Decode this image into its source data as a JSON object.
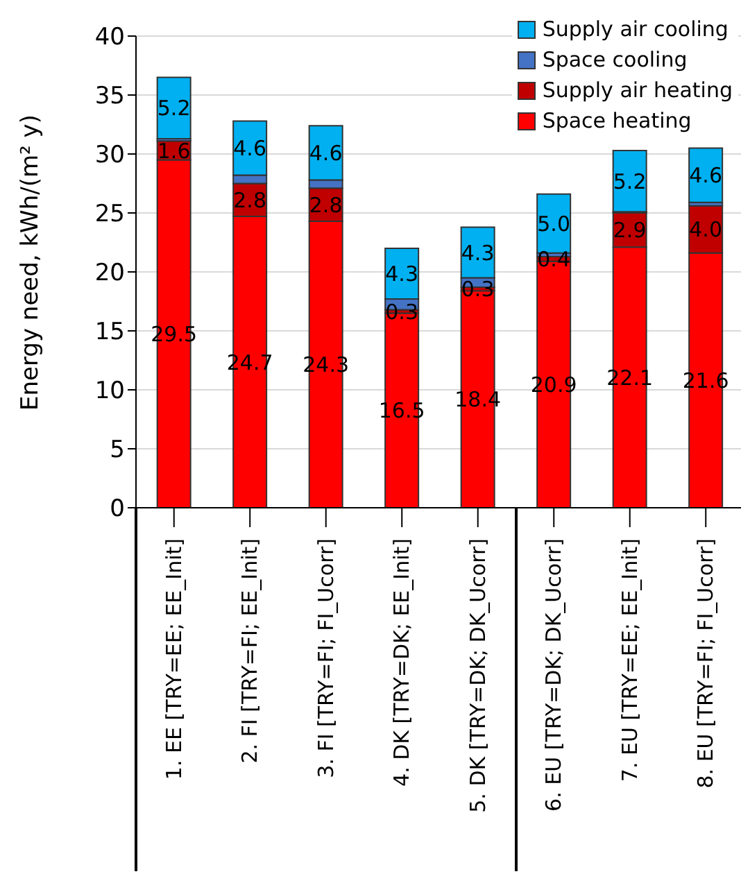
{
  "chart_data": {
    "type": "bar",
    "stacked": true,
    "ylabel": "Energy need, kWh/(m² y)",
    "categories": [
      "1. EE [TRY=EE; EE_Init]",
      "2. FI [TRY=FI; EE_Init]",
      "3. FI [TRY=FI; FI_Ucorr]",
      "4. DK [TRY=DK; EE_Init]",
      "5. DK [TRY=DK; DK_Ucorr]",
      "6. EU [TRY=DK; DK_Ucorr]",
      "7. EU [TRY=EE; EE_Init]",
      "8. EU [TRY=FI; FI_Ucorr]"
    ],
    "series": [
      {
        "name": "Space heating",
        "color": "#ff0000",
        "values": [
          29.5,
          24.7,
          24.3,
          16.5,
          18.4,
          20.9,
          22.1,
          21.6
        ],
        "value_labels": [
          "29.5",
          "24.7",
          "24.3",
          "16.5",
          "18.4",
          "20.9",
          "22.1",
          "21.6"
        ]
      },
      {
        "name": "Supply air heating",
        "color": "#c00000",
        "values": [
          1.6,
          2.8,
          2.8,
          0.3,
          0.3,
          0.4,
          2.9,
          4.0
        ],
        "value_labels": [
          "1.6",
          "2.8",
          "2.8",
          "0.3",
          "0.3",
          "0.4",
          "2.9",
          "4.0"
        ]
      },
      {
        "name": "Space cooling",
        "color": "#4472c4",
        "values": [
          0.2,
          0.7,
          0.7,
          0.9,
          0.8,
          0.3,
          0.1,
          0.3
        ],
        "value_labels": [
          null,
          null,
          null,
          null,
          null,
          null,
          null,
          null
        ]
      },
      {
        "name": "Supply air cooling",
        "color": "#00b0f0",
        "values": [
          5.2,
          4.6,
          4.6,
          4.3,
          4.3,
          5.0,
          5.2,
          4.6
        ],
        "value_labels": [
          "5.2",
          "4.6",
          "4.6",
          "4.3",
          "4.3",
          "5.0",
          "5.2",
          "4.6"
        ]
      }
    ],
    "ylim": [
      0,
      40
    ],
    "yticks": [
      0,
      5,
      10,
      15,
      20,
      25,
      30,
      35,
      40
    ],
    "grid": "y",
    "legend": "top right"
  }
}
